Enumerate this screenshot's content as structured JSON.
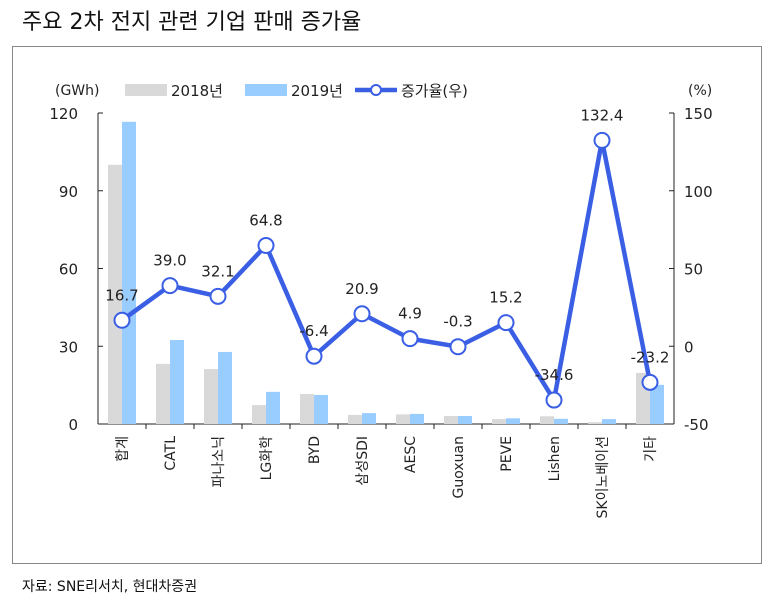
{
  "title": "주요 2차 전지 관련 기업 판매 증가율",
  "source": "자료: SNE리서치, 현대차증권",
  "chart_data": {
    "type": "bar+line",
    "categories": [
      "합계",
      "CATL",
      "파나소닉",
      "LG화학",
      "BYD",
      "삼성SDI",
      "AESC",
      "Guoxuan",
      "PEVE",
      "Lishen",
      "SK이노베이션",
      "기타"
    ],
    "left_unit": "(GWh)",
    "right_unit": "(%)",
    "ylim": [
      0,
      120
    ],
    "yticks": [
      0,
      30,
      60,
      90,
      120
    ],
    "y2lim": [
      -50,
      150
    ],
    "y2ticks": [
      -50,
      0,
      50,
      100,
      150
    ],
    "series": [
      {
        "name": "2018년",
        "type": "bar",
        "axis": "left",
        "color": "#d9d9d9",
        "values": [
          100,
          23.2,
          21.2,
          7.3,
          11.6,
          3.5,
          3.7,
          3.1,
          1.9,
          3.0,
          0.7,
          19.7
        ]
      },
      {
        "name": "2019년",
        "type": "bar",
        "axis": "left",
        "color": "#99ccff",
        "values": [
          116.6,
          32.4,
          27.8,
          12.4,
          11.2,
          4.2,
          3.9,
          3.1,
          2.2,
          2.0,
          1.9,
          15.1
        ]
      },
      {
        "name": "증가율(우)",
        "type": "line",
        "axis": "right",
        "color": "#3a5fe5",
        "values": [
          16.7,
          39.0,
          32.1,
          64.8,
          -6.4,
          20.9,
          4.9,
          -0.3,
          15.2,
          -34.6,
          132.4,
          -23.2
        ],
        "labels": [
          "16.7",
          "39.0",
          "32.1",
          "64.8",
          "-6.4",
          "20.9",
          "4.9",
          "-0.3",
          "15.2",
          "-34.6",
          "132.4",
          "-23.2"
        ]
      }
    ]
  }
}
